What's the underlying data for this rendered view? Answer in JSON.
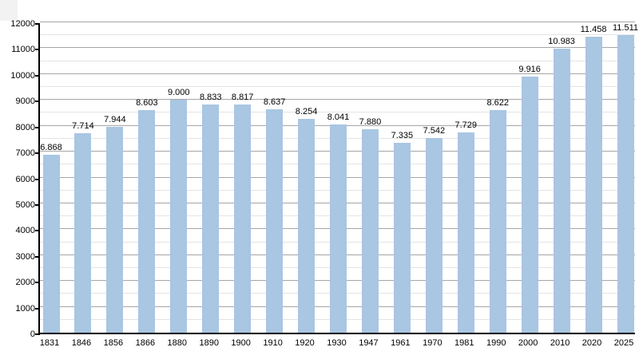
{
  "chart_data": {
    "type": "bar",
    "title": "",
    "xlabel": "",
    "ylabel": "",
    "categories": [
      "1831",
      "1846",
      "1856",
      "1866",
      "1880",
      "1890",
      "1900",
      "1910",
      "1920",
      "1930",
      "1947",
      "1961",
      "1970",
      "1981",
      "1990",
      "2000",
      "2010",
      "2020",
      "2025"
    ],
    "values": [
      6868,
      7714,
      7944,
      8603,
      9000,
      8833,
      8817,
      8637,
      8254,
      8041,
      7880,
      7335,
      7542,
      7729,
      8622,
      9916,
      10983,
      11458,
      11511
    ],
    "value_labels": [
      "6.868",
      "7.714",
      "7.944",
      "8.603",
      "9.000",
      "8.833",
      "8.817",
      "8.637",
      "8.254",
      "8.041",
      "7.880",
      "7.335",
      "7.542",
      "7.729",
      "8.622",
      "9.916",
      "10.983",
      "11.458",
      "11.511"
    ],
    "ylim": [
      0,
      12000
    ],
    "y_major_step": 1000,
    "y_minor_step": 500,
    "grid": true,
    "legend": "none",
    "bar_color": "#a9c6e2",
    "major_grid_color": "#a6a6a6",
    "minor_grid_color": "#e4e4e4",
    "axis_color": "#000000"
  }
}
